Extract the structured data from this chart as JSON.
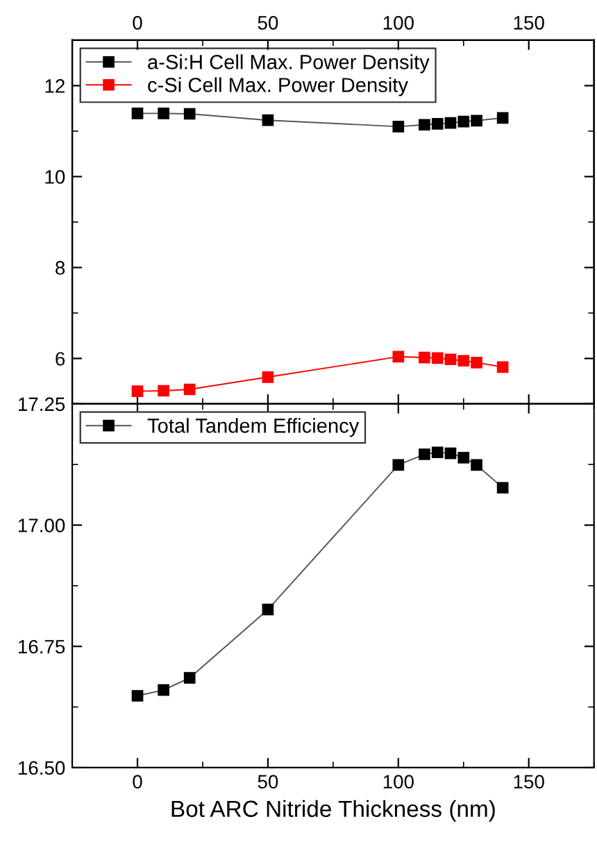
{
  "chart_data": [
    {
      "type": "line",
      "x": [
        0,
        10,
        20,
        50,
        100,
        110,
        115,
        120,
        125,
        130,
        140
      ],
      "series": [
        {
          "name": "a-Si:H Cell Max. Power Density",
          "color": "#000000",
          "values": [
            11.39,
            11.39,
            11.38,
            11.24,
            11.1,
            11.14,
            11.16,
            11.18,
            11.21,
            11.23,
            11.29
          ]
        },
        {
          "name": "c-Si Cell Max. Power Density",
          "color": "#ff0000",
          "values": [
            5.28,
            5.29,
            5.32,
            5.59,
            6.04,
            6.02,
            6.01,
            5.98,
            5.95,
            5.91,
            5.81
          ]
        }
      ],
      "xlim": [
        -25,
        175
      ],
      "x2lim": [
        -25,
        175
      ],
      "x2ticks": [
        0,
        50,
        100,
        150
      ],
      "ylim": [
        5,
        13
      ],
      "yticks": [
        {
          "value": 6,
          "label": "6"
        },
        {
          "value": 8,
          "label": "8"
        },
        {
          "value": 10,
          "label": "10"
        },
        {
          "value": 12,
          "label": "12"
        }
      ],
      "tick_labels": "y",
      "marker": "square",
      "legend": "top left",
      "grid": false
    },
    {
      "type": "line",
      "x": [
        0,
        10,
        20,
        50,
        100,
        110,
        115,
        120,
        125,
        130,
        140
      ],
      "series": [
        {
          "name": "Total Tandem Efficiency",
          "color": "#000000",
          "values": [
            16.648,
            16.66,
            16.685,
            16.826,
            17.124,
            17.146,
            17.15,
            17.148,
            17.139,
            17.124,
            17.077
          ]
        }
      ],
      "xlabel": "Bot ARC Nitride Thickness (nm)",
      "xlim": [
        -25,
        175
      ],
      "xticks": [
        0,
        50,
        100,
        150
      ],
      "ylim": [
        16.5,
        17.25
      ],
      "yticks": [
        {
          "value": 16.5,
          "label": "16.50"
        },
        {
          "value": 16.75,
          "label": "16.75"
        },
        {
          "value": 17.0,
          "label": "17.00"
        },
        {
          "value": 17.25,
          "label": "17.25"
        }
      ],
      "marker": "square",
      "legend": "top left",
      "grid": false
    }
  ]
}
